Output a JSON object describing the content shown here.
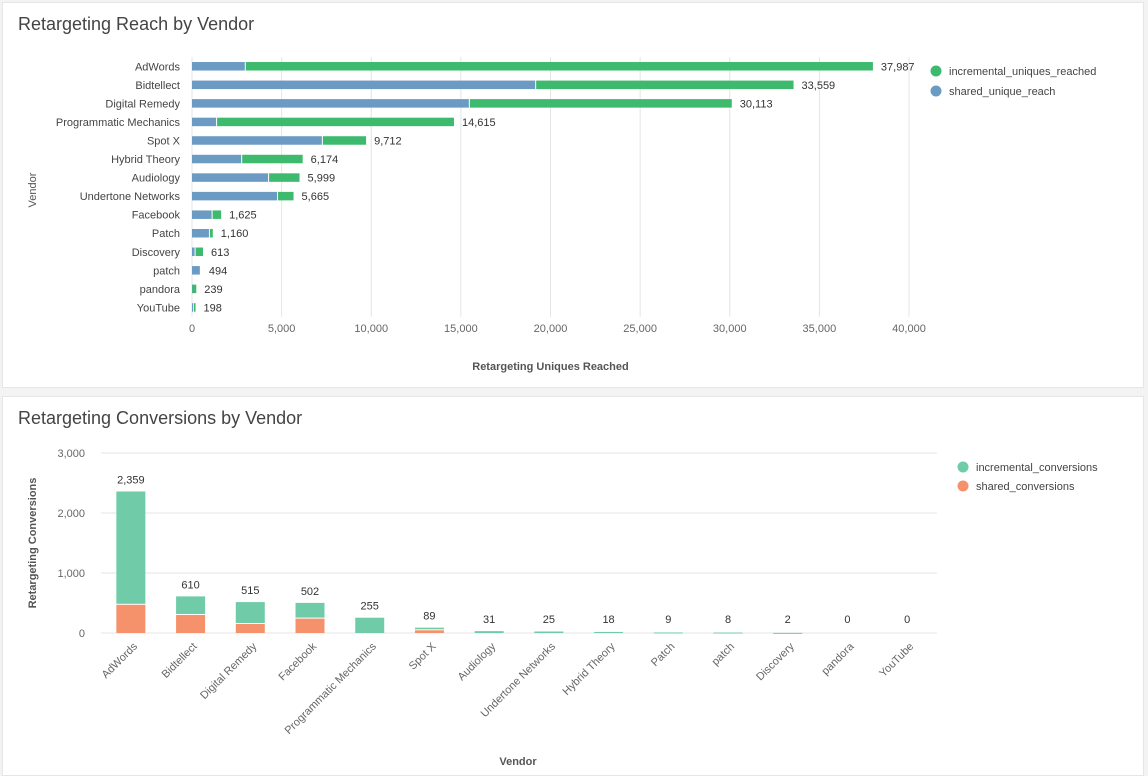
{
  "chart_data": [
    {
      "id": "reach",
      "type": "bar",
      "orientation": "horizontal",
      "stacked": true,
      "title": "Retargeting Reach by Vendor",
      "xlabel": "Retargeting Uniques Reached",
      "ylabel": "Vendor",
      "xlim": [
        0,
        40000
      ],
      "ticks": [
        "0",
        "5,000",
        "10,000",
        "15,000",
        "20,000",
        "25,000",
        "30,000",
        "35,000",
        "40,000"
      ],
      "tick_values": [
        0,
        5000,
        10000,
        15000,
        20000,
        25000,
        30000,
        35000,
        40000
      ],
      "grid": true,
      "legend_position": "top-right",
      "categories": [
        "AdWords",
        "Bidtellect",
        "Digital Remedy",
        "Programmatic Mechanics",
        "Spot X",
        "Hybrid Theory",
        "Audiology",
        "Undertone Networks",
        "Facebook",
        "Patch",
        "Discovery",
        "patch",
        "pandora",
        "YouTube"
      ],
      "totals": [
        37987,
        33559,
        30113,
        14615,
        9712,
        6174,
        5999,
        5665,
        1625,
        1160,
        613,
        494,
        239,
        198
      ],
      "total_labels": [
        "37,987",
        "33,559",
        "30,113",
        "14,615",
        "9,712",
        "6,174",
        "5,999",
        "5,665",
        "1,625",
        "1,160",
        "613",
        "494",
        "239",
        "198"
      ],
      "series": [
        {
          "name": "shared_unique_reach",
          "color": "#6b9bc3",
          "values": [
            3000,
            19200,
            15500,
            1400,
            7300,
            2800,
            4300,
            4800,
            1150,
            1000,
            200,
            494,
            20,
            100
          ]
        },
        {
          "name": "incremental_uniques_reached",
          "color": "#3dba6d",
          "values": [
            34987,
            14359,
            14613,
            13215,
            2412,
            3374,
            1699,
            865,
            475,
            160,
            413,
            0,
            219,
            98
          ]
        }
      ],
      "legend": [
        {
          "name": "incremental_uniques_reached",
          "color": "#3dba6d"
        },
        {
          "name": "shared_unique_reach",
          "color": "#6b9bc3"
        }
      ]
    },
    {
      "id": "conv",
      "type": "bar",
      "orientation": "vertical",
      "stacked": true,
      "title": "Retargeting Conversions by Vendor",
      "xlabel": "Vendor",
      "ylabel": "Retargeting Conversions",
      "ylim": [
        0,
        3000
      ],
      "ticks": [
        "0",
        "1,000",
        "2,000",
        "3,000"
      ],
      "tick_values": [
        0,
        1000,
        2000,
        3000
      ],
      "grid": true,
      "legend_position": "top-right",
      "categories": [
        "AdWords",
        "Bidtellect",
        "Digital Remedy",
        "Facebook",
        "Programmatic Mechanics",
        "Spot X",
        "Audiology",
        "Undertone Networks",
        "Hybrid Theory",
        "Patch",
        "patch",
        "Discovery",
        "pandora",
        "YouTube"
      ],
      "totals": [
        2359,
        610,
        515,
        502,
        255,
        89,
        31,
        25,
        18,
        9,
        8,
        2,
        0,
        0
      ],
      "total_labels": [
        "2,359",
        "610",
        "515",
        "502",
        "255",
        "89",
        "31",
        "25",
        "18",
        "9",
        "8",
        "2",
        "0",
        "0"
      ],
      "series": [
        {
          "name": "shared_conversions",
          "color": "#f5926c",
          "values": [
            470,
            300,
            150,
            240,
            0,
            45,
            0,
            0,
            0,
            0,
            0,
            0,
            0,
            0
          ]
        },
        {
          "name": "incremental_conversions",
          "color": "#70cca8",
          "values": [
            1889,
            310,
            365,
            262,
            255,
            44,
            31,
            25,
            18,
            9,
            8,
            2,
            0,
            0
          ]
        }
      ],
      "legend": [
        {
          "name": "incremental_conversions",
          "color": "#70cca8"
        },
        {
          "name": "shared_conversions",
          "color": "#f5926c"
        }
      ]
    }
  ]
}
